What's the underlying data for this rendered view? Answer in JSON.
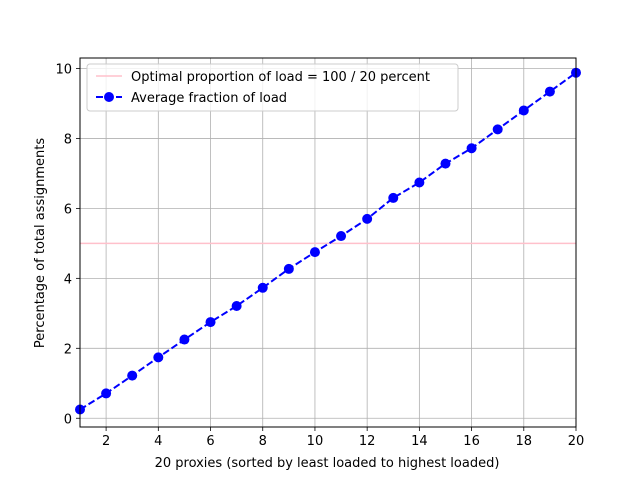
{
  "chart_data": {
    "type": "line",
    "title": "",
    "xlabel": "20 proxies (sorted by least loaded to highest loaded)",
    "ylabel": "Percentage of total assignments",
    "xlim": [
      1,
      20
    ],
    "ylim": [
      -0.25,
      10.3
    ],
    "xticks": [
      2,
      4,
      6,
      8,
      10,
      12,
      14,
      16,
      18,
      20
    ],
    "yticks": [
      0,
      2,
      4,
      6,
      8,
      10
    ],
    "grid": true,
    "legend_position": "top-left",
    "series": [
      {
        "name": "Optimal proportion of load = 100 / 20 percent",
        "color": "#ffc0cb",
        "style": "solid",
        "marker": "none",
        "x": [
          1,
          20
        ],
        "y": [
          5,
          5
        ]
      },
      {
        "name": "Average fraction of load",
        "color": "#0000ff",
        "style": "dashed",
        "marker": "circle",
        "x": [
          1,
          2,
          3,
          4,
          5,
          6,
          7,
          8,
          9,
          10,
          11,
          12,
          13,
          14,
          15,
          16,
          17,
          18,
          19,
          20
        ],
        "y": [
          0.25,
          0.71,
          1.22,
          1.74,
          2.25,
          2.75,
          3.21,
          3.73,
          4.27,
          4.75,
          5.21,
          5.7,
          6.3,
          6.74,
          7.28,
          7.72,
          8.26,
          8.8,
          9.34,
          9.88
        ]
      }
    ]
  }
}
